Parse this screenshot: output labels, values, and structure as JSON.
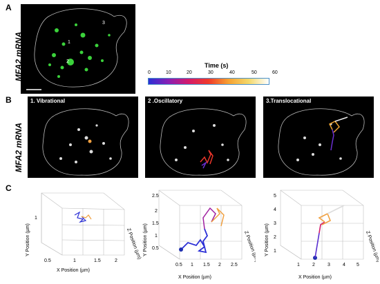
{
  "panels": {
    "a": {
      "letter": "A",
      "side_label": "MFA2 mRNA",
      "marker_1": "1",
      "marker_2": "2",
      "marker_3": "3"
    },
    "b": {
      "letter": "B",
      "side_label": "MFA2 mRNA",
      "titles": [
        "1. Vibrational",
        "2 .Oscillatory",
        "3.Translocational"
      ]
    },
    "c": {
      "letter": "C"
    }
  },
  "colorbar": {
    "title": "Time (s)",
    "ticks": [
      "0",
      "10",
      "20",
      "30",
      "40",
      "50",
      "60"
    ],
    "colors": [
      "#2b2fd6",
      "#8a1fb3",
      "#d41a6a",
      "#f03a2a",
      "#f7a232",
      "#f4d86a",
      "#ffffff"
    ]
  },
  "plots": [
    {
      "xlabel": "X Position (µm)",
      "ylabel": "Y Position (µm)",
      "zlabel": "Z Position (µm)",
      "xticks": [
        "0.5",
        "1",
        "1.5",
        "2"
      ],
      "yticks": [
        "1",
        "0.5"
      ],
      "zticks": [
        "0",
        "1",
        "2"
      ]
    },
    {
      "xlabel": "X Position (µm)",
      "ylabel": "Y Position (µm)",
      "zlabel": "Z Position (µm)",
      "xticks": [
        "0.5",
        "1",
        "1.5",
        "2",
        "2.5"
      ],
      "yticks": [
        "2.5",
        "2",
        "1.5",
        "1",
        "0.5"
      ],
      "zticks": [
        "0",
        "1",
        "2"
      ]
    },
    {
      "xlabel": "X Position (µm)",
      "ylabel": "Y Position (µm)",
      "zlabel": "Z Position (µm)",
      "xticks": [
        "1",
        "2",
        "3",
        "4",
        "5"
      ],
      "yticks": [
        "5",
        "4",
        "3",
        "2",
        "1"
      ],
      "zticks": [
        "0",
        "1",
        "2"
      ]
    }
  ]
}
